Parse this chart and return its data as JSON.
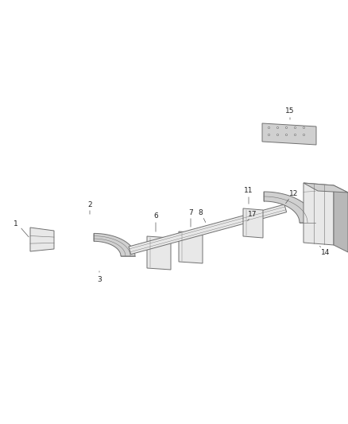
{
  "background_color": "#ffffff",
  "fig_width": 4.38,
  "fig_height": 5.33,
  "dpi": 100,
  "line_color": "#707070",
  "fill_light": "#e8e8e8",
  "fill_mid": "#d0d0d0",
  "fill_dark": "#b8b8b8",
  "label_fontsize": 6.5,
  "label_color": "#222222",
  "lw": 0.7
}
